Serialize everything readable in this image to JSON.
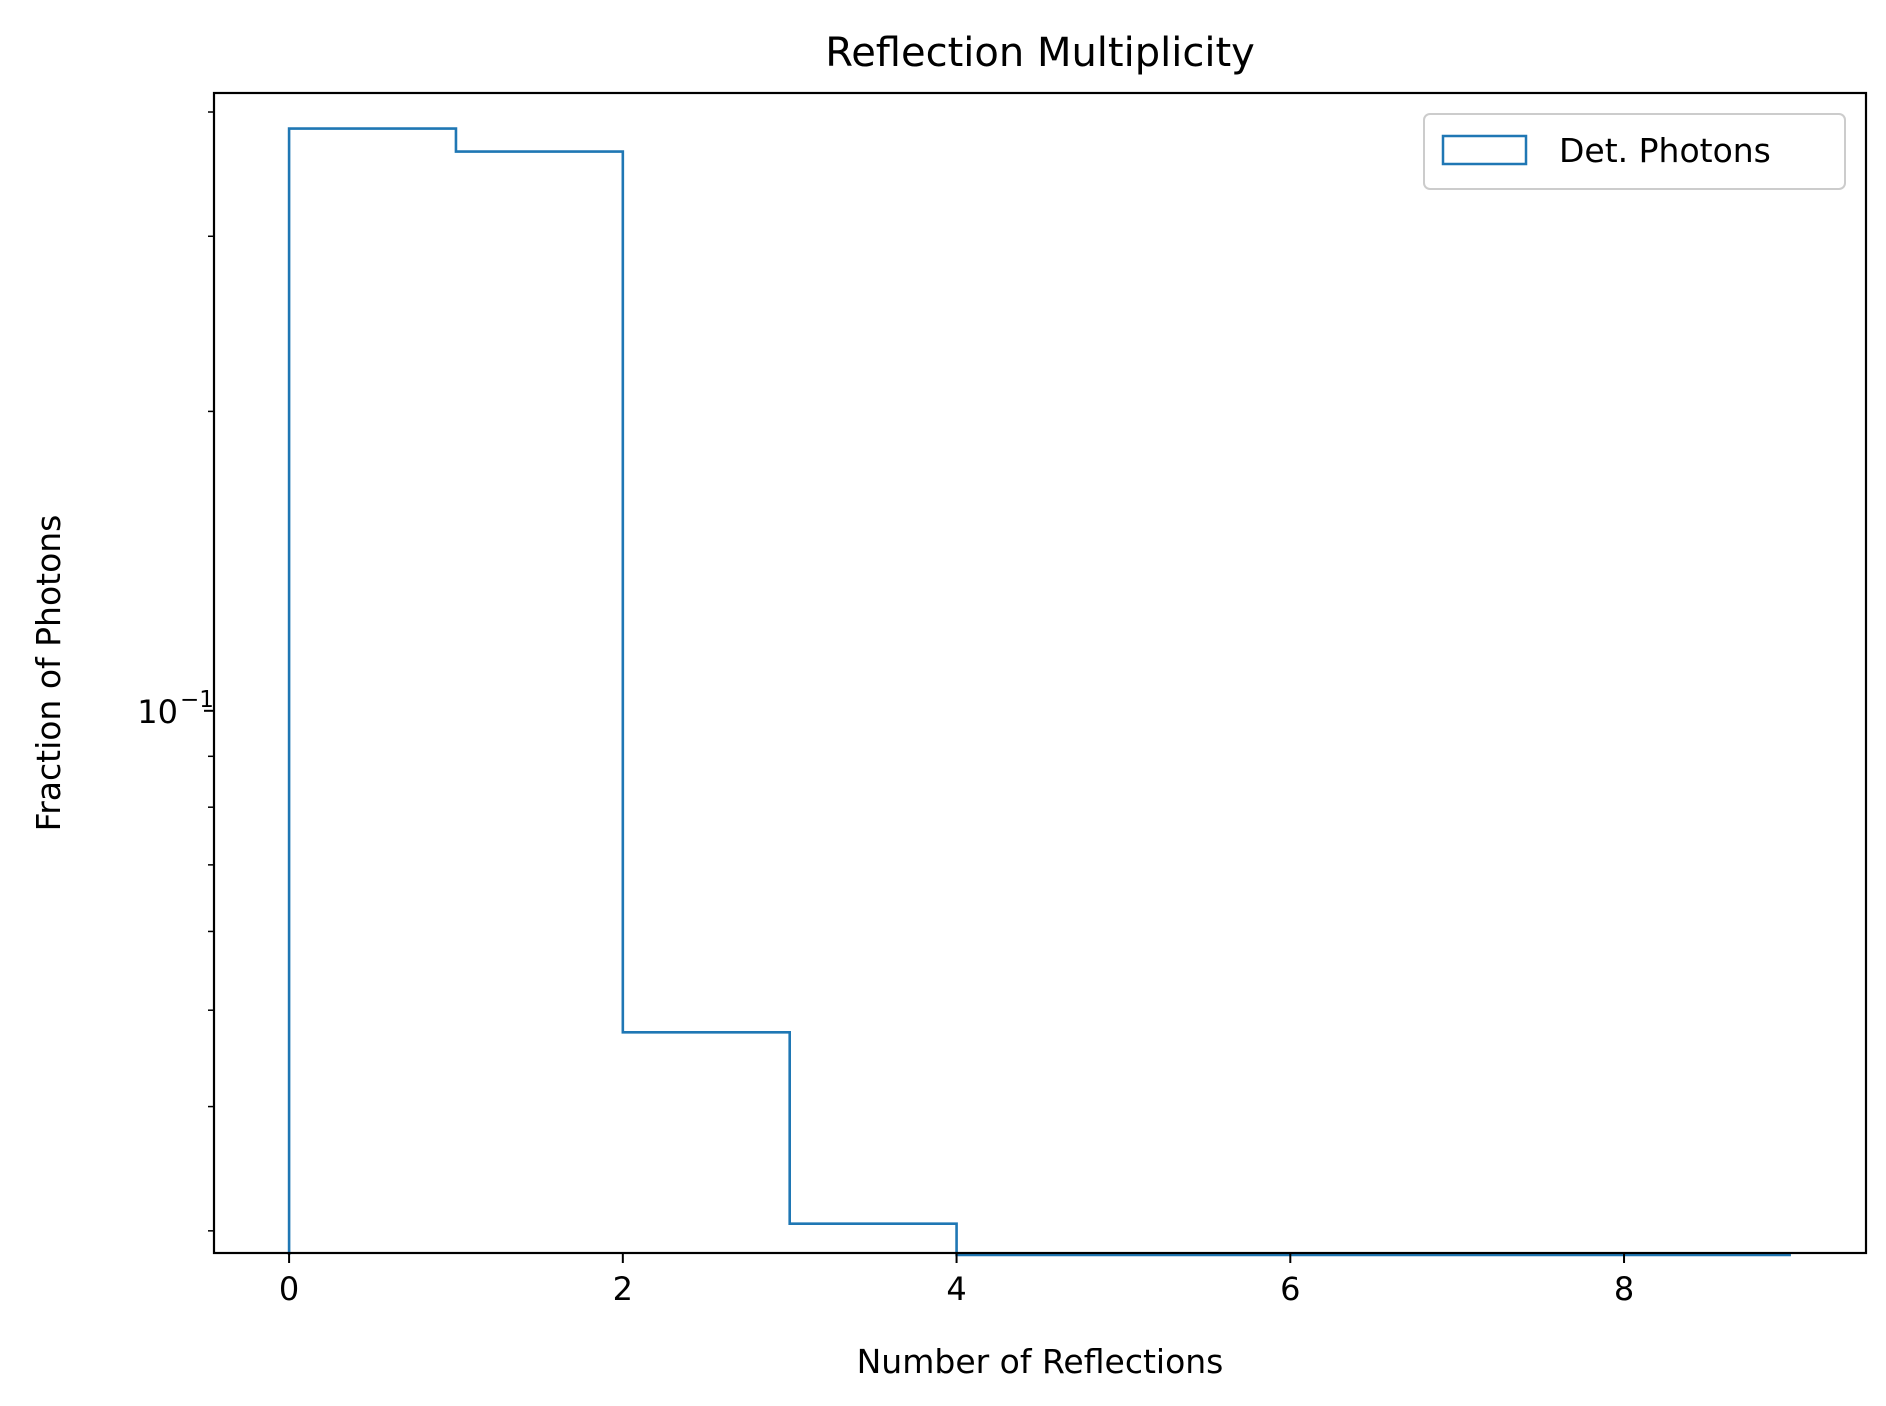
{
  "chart_data": {
    "type": "histogram",
    "title": "Reflection Multiplicity",
    "xlabel": "Number of Reflections",
    "ylabel": "Fraction of Photons",
    "bin_edges": [
      0,
      1,
      2,
      3,
      4,
      5,
      6,
      7,
      8,
      9
    ],
    "series": [
      {
        "name": "Det. Photons",
        "color": "#1f77b4",
        "histtype": "step",
        "values": [
          0.385,
          0.365,
          0.0475,
          0.0305,
          0,
          0,
          0,
          0,
          0
        ]
      }
    ],
    "xlim": [
      -0.45,
      9.45
    ],
    "ylim": [
      0.0285,
      0.418
    ],
    "y_scale": "log",
    "x_ticks": [
      0,
      2,
      4,
      6,
      8
    ],
    "x_tick_labels": [
      "0",
      "2",
      "4",
      "6",
      "8"
    ],
    "y_major_ticks": [
      0.1
    ],
    "y_major_tick_labels": [
      "10",
      "−1"
    ],
    "y_minor_ticks": [
      0.03,
      0.04,
      0.05,
      0.06,
      0.07,
      0.08,
      0.09,
      0.2,
      0.3,
      0.4
    ],
    "grid": false,
    "legend_position": "top-right"
  }
}
